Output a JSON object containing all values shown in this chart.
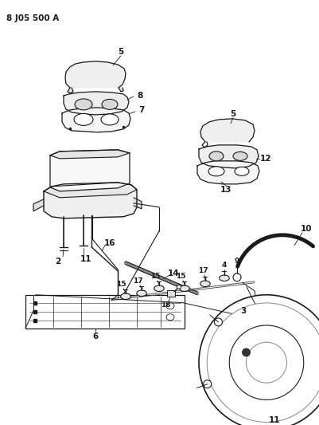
{
  "title": "8 J05 500 A",
  "bg_color": "#ffffff",
  "line_color": "#1a1a1a",
  "figsize": [
    4.02,
    5.33
  ],
  "dpi": 100
}
